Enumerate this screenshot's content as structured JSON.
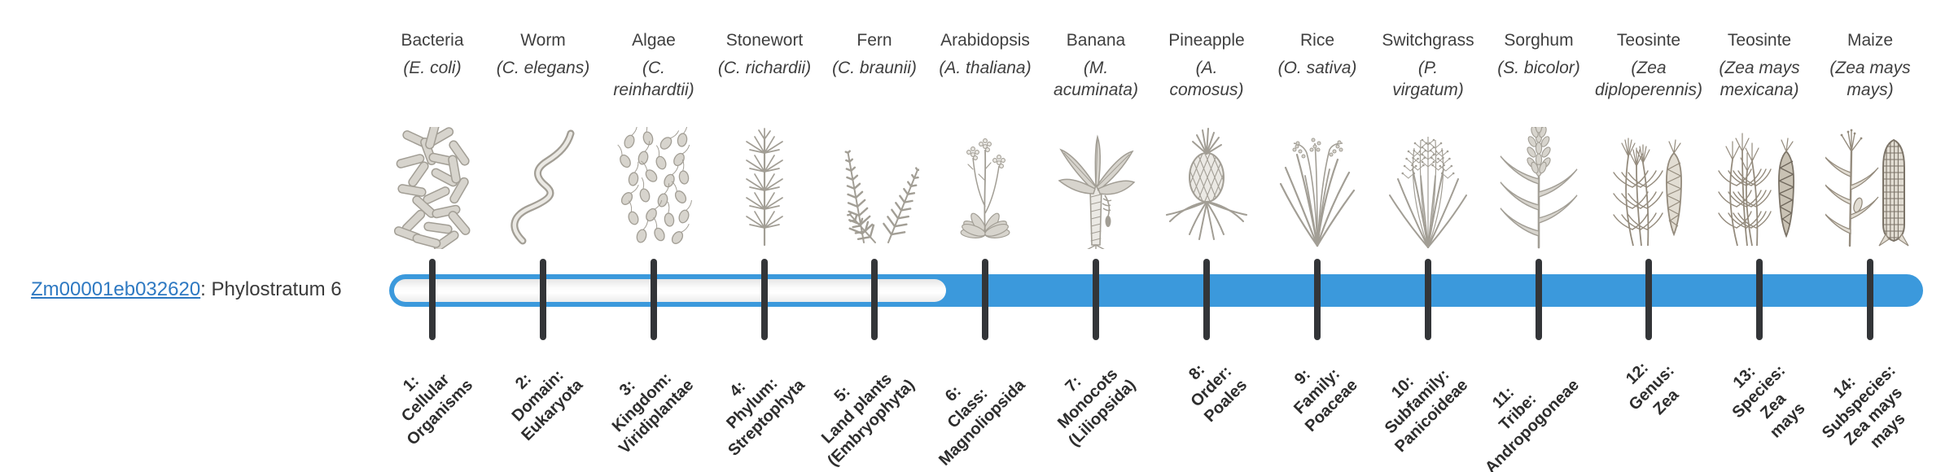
{
  "gene_label": {
    "link_text": "Zm00001eb032620",
    "suffix": ": Phylostratum 6",
    "phylostratum": 6
  },
  "bar": {
    "total_strata": 14,
    "filled_from_stratum": 6,
    "fill_color": "#3B99DC",
    "unfilled_color": "#fbfbfb",
    "tick_color": "#333538"
  },
  "strata": [
    {
      "n": 1,
      "name": "Bacteria",
      "latin": "(E. coli)",
      "tick_label": "1:\nCellular\nOrganisms",
      "icon": "bacteria-icon",
      "filled": false
    },
    {
      "n": 2,
      "name": "Worm",
      "latin": "(C. elegans)",
      "tick_label": "2:\nDomain:\nEukaryota",
      "icon": "worm-icon",
      "filled": false
    },
    {
      "n": 3,
      "name": "Algae",
      "latin": "(C.\nreinhardtii)",
      "tick_label": "3:\nKingdom:\nViridiplantae",
      "icon": "algae-icon",
      "filled": false
    },
    {
      "n": 4,
      "name": "Stonewort",
      "latin": "(C. richardii)",
      "tick_label": "4:\nPhylum:\nStreptophyta",
      "icon": "stonewort-icon",
      "filled": false
    },
    {
      "n": 5,
      "name": "Fern",
      "latin": "(C. braunii)",
      "tick_label": "5:\nLand plants\n(Embryophyta)",
      "icon": "fern-icon",
      "filled": false
    },
    {
      "n": 6,
      "name": "Arabidopsis",
      "latin": "(A. thaliana)",
      "tick_label": "6:\nClass:\nMagnoliopsida",
      "icon": "arabidopsis-icon",
      "filled": true
    },
    {
      "n": 7,
      "name": "Banana",
      "latin": "(M.\nacuminata)",
      "tick_label": "7:\nMonocots\n(Liliopsida)",
      "icon": "banana-icon",
      "filled": true
    },
    {
      "n": 8,
      "name": "Pineapple",
      "latin": "(A.\ncomosus)",
      "tick_label": "8:\nOrder:\nPoales",
      "icon": "pineapple-icon",
      "filled": true
    },
    {
      "n": 9,
      "name": "Rice",
      "latin": "(O. sativa)",
      "tick_label": "9:\nFamily:\nPoaceae",
      "icon": "rice-icon",
      "filled": true
    },
    {
      "n": 10,
      "name": "Switchgrass",
      "latin": "(P.\nvirgatum)",
      "tick_label": "10:\nSubfamily:\nPanicoideae",
      "icon": "switchgrass-icon",
      "filled": true
    },
    {
      "n": 11,
      "name": "Sorghum",
      "latin": "(S. bicolor)",
      "tick_label": "11:\nTribe:\nAndropogoneae",
      "icon": "sorghum-icon",
      "filled": true
    },
    {
      "n": 12,
      "name": "Teosinte",
      "latin": "(Zea\ndiploperennis)",
      "tick_label": "12:\nGenus:\nZea",
      "icon": "teosinte-diploperennis-icon",
      "filled": true
    },
    {
      "n": 13,
      "name": "Teosinte",
      "latin": "(Zea mays\nmexicana)",
      "tick_label": "13:\nSpecies:\nZea\nmays",
      "icon": "teosinte-mexicana-icon",
      "filled": true
    },
    {
      "n": 14,
      "name": "Maize",
      "latin": "(Zea mays\nmays)",
      "tick_label": "14:\nSubspecies:\nZea mays\nmays",
      "icon": "maize-icon",
      "filled": true
    }
  ]
}
